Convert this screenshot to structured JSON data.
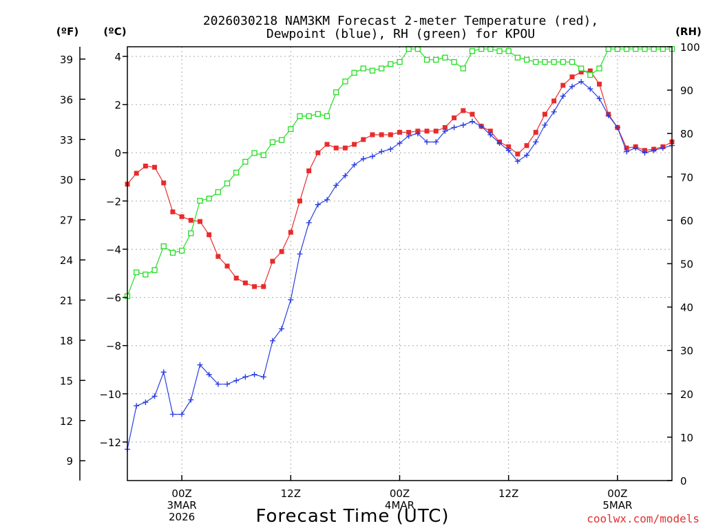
{
  "chart_data": {
    "type": "line",
    "title_lines": [
      "2026030218 NAM3KM Forecast 2-meter Temperature (red),",
      "Dewpoint (blue), RH (green) for KPOU"
    ],
    "xlabel": "Forecast Time (UTC)",
    "credit": "coolwx.com/models",
    "units": {
      "fahrenheit": "(ºF)",
      "celsius": "(ºC)",
      "rh": "(RH)"
    },
    "x_range_hours": [
      -6,
      54
    ],
    "x_ticks": [
      {
        "hour": 0,
        "lines": [
          "00Z",
          "3MAR",
          "2026"
        ]
      },
      {
        "hour": 12,
        "lines": [
          "12Z"
        ]
      },
      {
        "hour": 24,
        "lines": [
          "00Z",
          "4MAR"
        ]
      },
      {
        "hour": 36,
        "lines": [
          "12Z"
        ]
      },
      {
        "hour": 48,
        "lines": [
          "00Z",
          "5MAR"
        ]
      }
    ],
    "celsius_axis": {
      "range": [
        -13.6,
        4.4
      ],
      "ticks": [
        -12,
        -10,
        -8,
        -6,
        -4,
        -2,
        0,
        2,
        4
      ]
    },
    "fahrenheit_axis": {
      "ticks": [
        9,
        12,
        15,
        18,
        21,
        24,
        27,
        30,
        33,
        36,
        39
      ]
    },
    "rh_axis": {
      "range": [
        0,
        100
      ],
      "ticks": [
        0,
        10,
        20,
        30,
        40,
        50,
        60,
        70,
        80,
        90,
        100
      ]
    },
    "series": [
      {
        "name": "Temperature",
        "unit": "C",
        "color": "#e82c2c",
        "marker": "filled-square",
        "values": [
          -1.3,
          -0.85,
          -0.55,
          -0.6,
          -1.25,
          -2.45,
          -2.65,
          -2.8,
          -2.85,
          -3.4,
          -4.3,
          -4.7,
          -5.2,
          -5.4,
          -5.55,
          -5.55,
          -4.5,
          -4.1,
          -3.3,
          -2.0,
          -0.75,
          0.0,
          0.35,
          0.2,
          0.2,
          0.35,
          0.55,
          0.75,
          0.75,
          0.75,
          0.85,
          0.85,
          0.9,
          0.9,
          0.9,
          1.05,
          1.45,
          1.75,
          1.6,
          1.1,
          0.9,
          0.45,
          0.25,
          -0.05,
          0.3,
          0.85,
          1.6,
          2.15,
          2.8,
          3.15,
          3.35,
          3.4,
          2.85,
          1.6,
          1.05,
          0.2,
          0.25,
          0.1,
          0.15,
          0.25,
          0.45
        ]
      },
      {
        "name": "Dewpoint",
        "unit": "C",
        "color": "#2a3ee0",
        "marker": "plus",
        "values": [
          -12.3,
          -10.5,
          -10.35,
          -10.1,
          -9.1,
          -10.85,
          -10.85,
          -10.25,
          -8.8,
          -9.2,
          -9.6,
          -9.6,
          -9.45,
          -9.3,
          -9.2,
          -9.3,
          -7.8,
          -7.3,
          -6.1,
          -4.2,
          -2.9,
          -2.15,
          -1.95,
          -1.35,
          -0.95,
          -0.5,
          -0.25,
          -0.15,
          0.05,
          0.15,
          0.4,
          0.7,
          0.8,
          0.45,
          0.45,
          0.9,
          1.05,
          1.15,
          1.3,
          1.1,
          0.75,
          0.4,
          0.1,
          -0.35,
          -0.1,
          0.45,
          1.15,
          1.7,
          2.35,
          2.75,
          2.95,
          2.65,
          2.25,
          1.55,
          1.05,
          0.05,
          0.2,
          0.0,
          0.1,
          0.2,
          0.3
        ]
      },
      {
        "name": "RH",
        "unit": "%",
        "color": "#22dd22",
        "marker": "open-square",
        "values": [
          42.5,
          48,
          47.5,
          48.5,
          54,
          52.5,
          53,
          57,
          64.5,
          65,
          66.5,
          68.5,
          71,
          73.5,
          75.5,
          75,
          78,
          78.5,
          81,
          84,
          84,
          84.5,
          84,
          89.5,
          92,
          94,
          95,
          94.5,
          95,
          96,
          96.5,
          99.5,
          99.5,
          97,
          97,
          97.5,
          96.5,
          95,
          99,
          99.5,
          99.5,
          99,
          99,
          97.5,
          97,
          96.5,
          96.5,
          96.5,
          96.5,
          96.5,
          95,
          93.5,
          95,
          99.5,
          99.5,
          99.5,
          99.5,
          99.5,
          99.5,
          99.5,
          99.5
        ]
      }
    ]
  }
}
